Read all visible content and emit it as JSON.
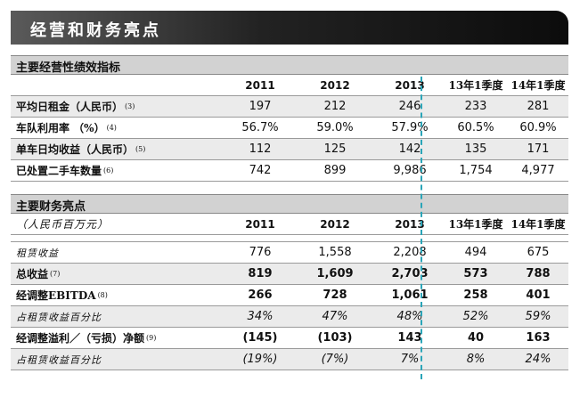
{
  "title": "经营和财务亮点",
  "operating": {
    "heading": "主要经营性绩效指标",
    "columns": [
      "2011",
      "2012",
      "2013",
      "13年1季度",
      "14年1季度"
    ],
    "rows": [
      {
        "label": "平均日租金（人民币）",
        "note": "(3)",
        "values": [
          "197",
          "212",
          "246",
          "233",
          "281"
        ]
      },
      {
        "label": "车队利用率 （%）",
        "note": "(4)",
        "values": [
          "56.7%",
          "59.0%",
          "57.9%",
          "60.5%",
          "60.9%"
        ]
      },
      {
        "label": "单车日均收益（人民币）",
        "note": "(5)",
        "values": [
          "112",
          "125",
          "142",
          "135",
          "171"
        ]
      },
      {
        "label": "已处置二手车数量",
        "note": "(6)",
        "values": [
          "742",
          "899",
          "9,986",
          "1,754",
          "4,977"
        ]
      }
    ]
  },
  "financial": {
    "heading": "主要财务亮点",
    "unit": "（人民币百万元）",
    "columns": [
      "2011",
      "2012",
      "2013",
      "13年1季度",
      "14年1季度"
    ],
    "rows": [
      {
        "label": "租赁收益",
        "note": "",
        "values": [
          "776",
          "1,558",
          "2,208",
          "494",
          "675"
        ]
      },
      {
        "label": "总收益",
        "note": "(7)",
        "values": [
          "819",
          "1,609",
          "2,703",
          "573",
          "788"
        ]
      },
      {
        "label": "经调整EBITDA",
        "note": "(8)",
        "values": [
          "266",
          "728",
          "1,061",
          "258",
          "401"
        ]
      },
      {
        "label": "占租赁收益百分比",
        "note": "",
        "values": [
          "34%",
          "47%",
          "48%",
          "52%",
          "59%"
        ]
      },
      {
        "label": "经调整溢利／（亏损）净额",
        "note": "(9)",
        "values": [
          "(145)",
          "(103)",
          "143",
          "40",
          "163"
        ]
      },
      {
        "label": "占租赁收益百分比",
        "note": "",
        "values": [
          "(19%)",
          "(7%)",
          "7%",
          "8%",
          "24%"
        ]
      }
    ]
  },
  "colors": {
    "divider": "#2aa5b8",
    "section_bg": "#d2d2d2",
    "row_shade": "#ebebeb"
  }
}
